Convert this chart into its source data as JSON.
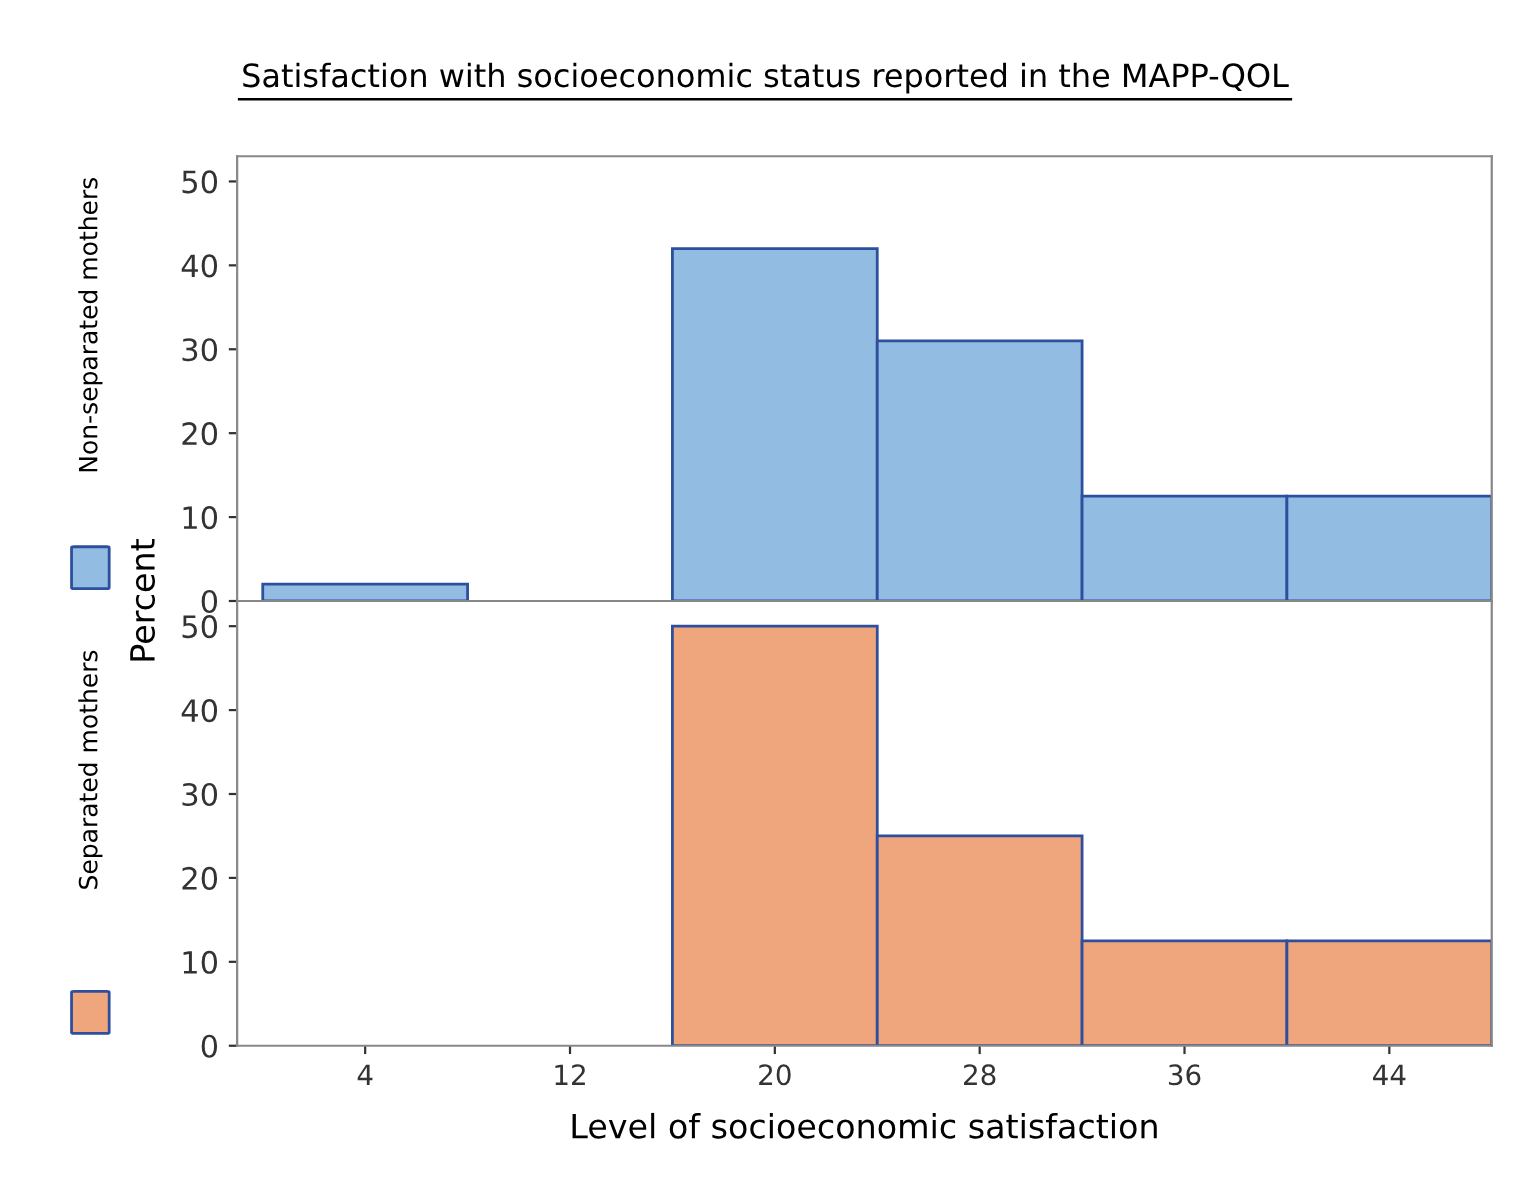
{
  "chart_data": [
    {
      "type": "histogram",
      "title": "Satisfaction with socioeconomic status reported in the MAPP-QOL",
      "ylabel": "Percent",
      "bins": [
        0,
        8,
        16,
        24,
        32,
        40,
        48
      ],
      "series": [
        {
          "name": "Non-separated mothers",
          "color": "#92bce2",
          "values": [
            2,
            0,
            42,
            31,
            12.5,
            12.5
          ]
        }
      ],
      "xlim": [
        -1,
        48
      ],
      "ylim": [
        0,
        53
      ],
      "yticks": [
        0,
        10,
        20,
        30,
        40,
        50
      ],
      "tick_labels": "y",
      "legend": "left",
      "grid": false
    },
    {
      "type": "histogram",
      "xlabel": "Level of socioeconomic satisfaction",
      "bins": [
        0,
        8,
        16,
        24,
        32,
        40,
        48
      ],
      "series": [
        {
          "name": "Separated mothers",
          "color": "#f0a67c",
          "values": [
            0,
            0,
            50,
            25,
            12.5,
            12.5
          ]
        }
      ],
      "xlim": [
        -1,
        48
      ],
      "ylim": [
        0,
        53
      ],
      "yticks": [
        0,
        10,
        20,
        30,
        40,
        50
      ],
      "xticks": [
        4,
        12,
        20,
        28,
        36,
        44
      ],
      "legend": "left",
      "grid": false
    }
  ]
}
